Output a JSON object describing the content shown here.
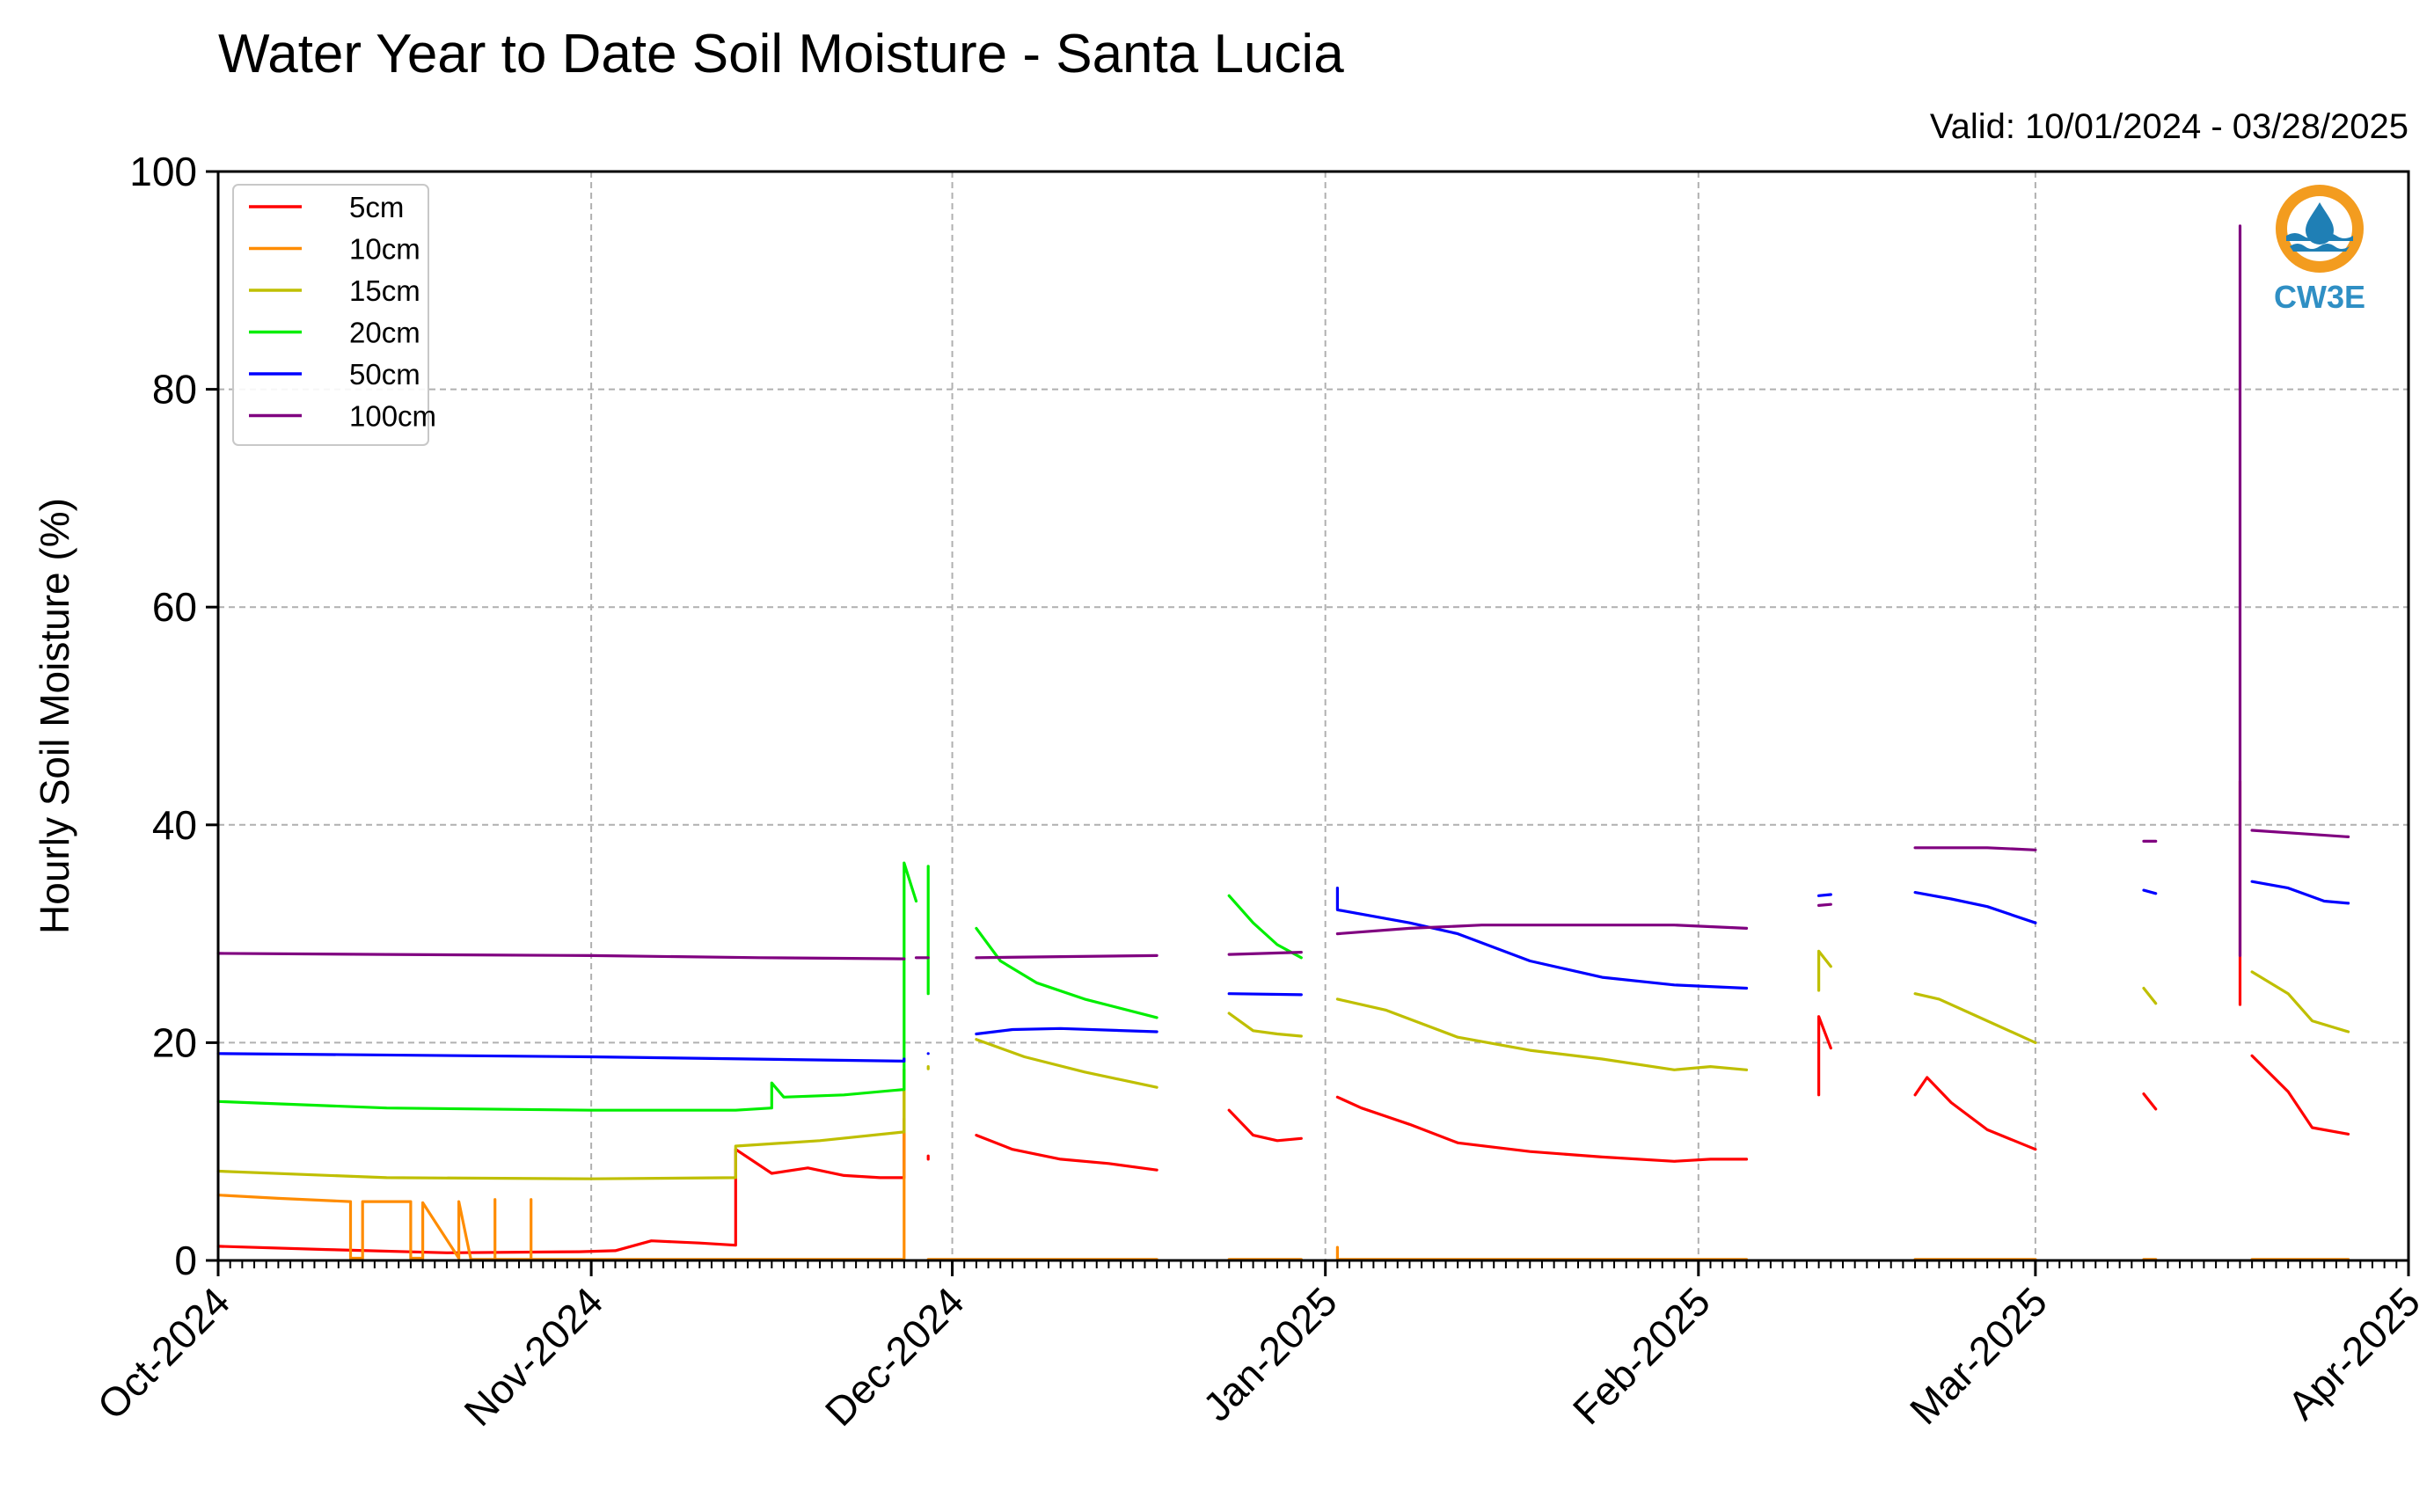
{
  "chart_data": {
    "type": "line",
    "title": "Water Year to Date Soil Moisture - Santa Lucia",
    "subtitle": "Valid: 10/01/2024 - 03/28/2025",
    "ylabel": "Hourly Soil Moisture (%)",
    "xlabel": "",
    "ylim": [
      0,
      100
    ],
    "xlim": [
      "2024-10-01",
      "2025-04-01"
    ],
    "yticks": [
      "0",
      "20",
      "40",
      "60",
      "80",
      "100"
    ],
    "xticks": [
      {
        "date": "2024-10-01",
        "label": "Oct-2024"
      },
      {
        "date": "2024-11-01",
        "label": "Nov-2024"
      },
      {
        "date": "2024-12-01",
        "label": "Dec-2024"
      },
      {
        "date": "2025-01-01",
        "label": "Jan-2025"
      },
      {
        "date": "2025-02-01",
        "label": "Feb-2025"
      },
      {
        "date": "2025-03-01",
        "label": "Mar-2025"
      },
      {
        "date": "2025-04-01",
        "label": "Apr-2025"
      }
    ],
    "grid": true,
    "legend_position": "top-left",
    "series": [
      {
        "name": "5cm",
        "color": "#ff0000",
        "segments": [
          [
            [
              "2024-10-01",
              1.3
            ],
            [
              "2024-10-10",
              1.0
            ],
            [
              "2024-10-20",
              0.7
            ],
            [
              "2024-10-31",
              0.8
            ],
            [
              "2024-11-03",
              0.9
            ],
            [
              "2024-11-06",
              1.8
            ],
            [
              "2024-11-10",
              1.6
            ],
            [
              "2024-11-13",
              1.4
            ],
            [
              "2024-11-13",
              10.2
            ],
            [
              "2024-11-16",
              8.0
            ],
            [
              "2024-11-19",
              8.5
            ],
            [
              "2024-11-22",
              7.8
            ],
            [
              "2024-11-25",
              7.6
            ],
            [
              "2024-11-27",
              7.6
            ],
            [
              "2024-11-27",
              13.0
            ]
          ],
          [
            [
              "2024-11-29",
              9.6
            ],
            [
              "2024-11-29",
              9.3
            ]
          ],
          [
            [
              "2024-12-03",
              11.5
            ],
            [
              "2024-12-06",
              10.2
            ],
            [
              "2024-12-10",
              9.3
            ],
            [
              "2024-12-14",
              8.9
            ],
            [
              "2024-12-18",
              8.3
            ]
          ],
          [
            [
              "2024-12-24",
              13.8
            ],
            [
              "2024-12-26",
              11.5
            ],
            [
              "2024-12-28",
              11.0
            ],
            [
              "2024-12-30",
              11.2
            ]
          ],
          [
            [
              "2025-01-02",
              15.0
            ],
            [
              "2025-01-04",
              14.0
            ],
            [
              "2025-01-08",
              12.5
            ],
            [
              "2025-01-12",
              10.8
            ],
            [
              "2025-01-18",
              10.0
            ],
            [
              "2025-01-24",
              9.5
            ],
            [
              "2025-01-30",
              9.1
            ],
            [
              "2025-02-02",
              9.3
            ],
            [
              "2025-02-05",
              9.3
            ]
          ],
          [
            [
              "2025-02-11",
              15.2
            ],
            [
              "2025-02-11",
              22.4
            ],
            [
              "2025-02-12",
              19.5
            ]
          ],
          [
            [
              "2025-02-19",
              15.2
            ],
            [
              "2025-02-20",
              16.8
            ],
            [
              "2025-02-22",
              14.5
            ],
            [
              "2025-02-25",
              12.0
            ],
            [
              "2025-03-01",
              10.2
            ]
          ],
          [
            [
              "2025-03-10",
              15.3
            ],
            [
              "2025-03-11",
              13.9
            ]
          ],
          [
            [
              "2025-03-18",
              44.0
            ],
            [
              "2025-03-18",
              23.5
            ]
          ],
          [
            [
              "2025-03-19",
              18.8
            ],
            [
              "2025-03-22",
              15.5
            ],
            [
              "2025-03-24",
              12.2
            ],
            [
              "2025-03-27",
              11.6
            ]
          ]
        ]
      },
      {
        "name": "10cm",
        "color": "#ff8c00",
        "segments": [
          [
            [
              "2024-10-01",
              6.0
            ],
            [
              "2024-10-06",
              5.7
            ],
            [
              "2024-10-12",
              5.4
            ],
            [
              "2024-10-12",
              0.2
            ],
            [
              "2024-10-13",
              0.2
            ],
            [
              "2024-10-13",
              5.4
            ],
            [
              "2024-10-17",
              5.4
            ],
            [
              "2024-10-17",
              0.2
            ],
            [
              "2024-10-18",
              0.2
            ],
            [
              "2024-10-18",
              5.3
            ],
            [
              "2024-10-21",
              0.2
            ],
            [
              "2024-10-21",
              5.4
            ],
            [
              "2024-10-22",
              0.1
            ],
            [
              "2024-10-24",
              0.1
            ],
            [
              "2024-10-24",
              5.6
            ],
            [
              "2024-10-24",
              0.1
            ],
            [
              "2024-10-27",
              0.1
            ],
            [
              "2024-10-27",
              5.6
            ],
            [
              "2024-10-27",
              0.1
            ],
            [
              "2024-11-27",
              0.1
            ],
            [
              "2024-11-27",
              17.5
            ]
          ],
          [
            [
              "2024-11-29",
              0.1
            ],
            [
              "2024-12-18",
              0.1
            ]
          ],
          [
            [
              "2024-12-24",
              0.1
            ],
            [
              "2024-12-30",
              0.1
            ]
          ],
          [
            [
              "2025-01-02",
              1.2
            ],
            [
              "2025-01-02",
              0.1
            ],
            [
              "2025-02-05",
              0.1
            ]
          ],
          [
            [
              "2025-02-19",
              0.1
            ],
            [
              "2025-03-01",
              0.1
            ]
          ],
          [
            [
              "2025-03-10",
              0.1
            ],
            [
              "2025-03-11",
              0.1
            ]
          ],
          [
            [
              "2025-03-19",
              0.1
            ],
            [
              "2025-03-27",
              0.1
            ]
          ]
        ]
      },
      {
        "name": "15cm",
        "color": "#bfbf00",
        "segments": [
          [
            [
              "2024-10-01",
              8.2
            ],
            [
              "2024-10-15",
              7.6
            ],
            [
              "2024-11-01",
              7.5
            ],
            [
              "2024-11-13",
              7.6
            ],
            [
              "2024-11-13",
              10.5
            ],
            [
              "2024-11-20",
              11.0
            ],
            [
              "2024-11-27",
              11.8
            ],
            [
              "2024-11-27",
              17.5
            ]
          ],
          [
            [
              "2024-11-29",
              17.8
            ],
            [
              "2024-11-29",
              17.6
            ]
          ],
          [
            [
              "2024-12-03",
              20.3
            ],
            [
              "2024-12-07",
              18.7
            ],
            [
              "2024-12-12",
              17.3
            ],
            [
              "2024-12-18",
              15.9
            ]
          ],
          [
            [
              "2024-12-24",
              22.7
            ],
            [
              "2024-12-26",
              21.1
            ],
            [
              "2024-12-28",
              20.8
            ],
            [
              "2024-12-30",
              20.6
            ]
          ],
          [
            [
              "2025-01-02",
              24.0
            ],
            [
              "2025-01-06",
              23.0
            ],
            [
              "2025-01-12",
              20.5
            ],
            [
              "2025-01-18",
              19.3
            ],
            [
              "2025-01-24",
              18.5
            ],
            [
              "2025-01-30",
              17.5
            ],
            [
              "2025-02-02",
              17.8
            ],
            [
              "2025-02-05",
              17.5
            ]
          ],
          [
            [
              "2025-02-11",
              24.8
            ],
            [
              "2025-02-11",
              28.4
            ],
            [
              "2025-02-12",
              27.0
            ]
          ],
          [
            [
              "2025-02-19",
              24.5
            ],
            [
              "2025-02-21",
              24.0
            ],
            [
              "2025-02-24",
              22.5
            ],
            [
              "2025-02-27",
              21.0
            ],
            [
              "2025-03-01",
              20.0
            ]
          ],
          [
            [
              "2025-03-10",
              25.0
            ],
            [
              "2025-03-11",
              23.6
            ]
          ],
          [
            [
              "2025-03-19",
              26.5
            ],
            [
              "2025-03-22",
              24.5
            ],
            [
              "2025-03-24",
              22.0
            ],
            [
              "2025-03-27",
              21.0
            ]
          ]
        ]
      },
      {
        "name": "20cm",
        "color": "#00ee00",
        "segments": [
          [
            [
              "2024-10-01",
              14.6
            ],
            [
              "2024-10-15",
              14.0
            ],
            [
              "2024-11-01",
              13.8
            ],
            [
              "2024-11-13",
              13.8
            ],
            [
              "2024-11-16",
              14.0
            ],
            [
              "2024-11-16",
              16.3
            ],
            [
              "2024-11-17",
              15.0
            ],
            [
              "2024-11-22",
              15.2
            ],
            [
              "2024-11-27",
              15.7
            ],
            [
              "2024-11-27",
              36.5
            ],
            [
              "2024-11-28",
              33.0
            ]
          ],
          [
            [
              "2024-11-29",
              24.5
            ],
            [
              "2024-11-29",
              36.2
            ]
          ],
          [
            [
              "2024-12-03",
              30.5
            ],
            [
              "2024-12-05",
              27.5
            ],
            [
              "2024-12-08",
              25.5
            ],
            [
              "2024-12-12",
              24.0
            ],
            [
              "2024-12-18",
              22.3
            ]
          ],
          [
            [
              "2024-12-24",
              33.5
            ],
            [
              "2024-12-26",
              31.0
            ],
            [
              "2024-12-28",
              29.0
            ],
            [
              "2024-12-30",
              27.8
            ]
          ]
        ]
      },
      {
        "name": "50cm",
        "color": "#0000ff",
        "segments": [
          [
            [
              "2024-10-01",
              19.0
            ],
            [
              "2024-11-01",
              18.7
            ],
            [
              "2024-11-27",
              18.3
            ],
            [
              "2024-11-27",
              18.5
            ]
          ],
          [
            [
              "2024-11-29",
              19.0
            ],
            [
              "2024-11-29",
              19.0
            ]
          ],
          [
            [
              "2024-12-03",
              20.8
            ],
            [
              "2024-12-06",
              21.2
            ],
            [
              "2024-12-10",
              21.3
            ],
            [
              "2024-12-18",
              21.0
            ]
          ],
          [
            [
              "2024-12-24",
              24.5
            ],
            [
              "2024-12-30",
              24.4
            ]
          ],
          [
            [
              "2025-01-02",
              34.2
            ],
            [
              "2025-01-02",
              32.2
            ],
            [
              "2025-01-08",
              31.0
            ],
            [
              "2025-01-12",
              30.0
            ],
            [
              "2025-01-18",
              27.5
            ],
            [
              "2025-01-24",
              26.0
            ],
            [
              "2025-01-30",
              25.3
            ],
            [
              "2025-02-05",
              25.0
            ]
          ],
          [
            [
              "2025-02-11",
              33.5
            ],
            [
              "2025-02-12",
              33.6
            ]
          ],
          [
            [
              "2025-02-19",
              33.8
            ],
            [
              "2025-02-22",
              33.2
            ],
            [
              "2025-02-25",
              32.5
            ],
            [
              "2025-03-01",
              31.0
            ]
          ],
          [
            [
              "2025-03-10",
              34.0
            ],
            [
              "2025-03-11",
              33.7
            ]
          ],
          [
            [
              "2025-03-19",
              34.8
            ],
            [
              "2025-03-22",
              34.2
            ],
            [
              "2025-03-25",
              33.0
            ],
            [
              "2025-03-27",
              32.8
            ]
          ]
        ]
      },
      {
        "name": "100cm",
        "color": "#800080",
        "segments": [
          [
            [
              "2024-10-01",
              28.2
            ],
            [
              "2024-10-15",
              28.1
            ],
            [
              "2024-11-01",
              28.0
            ],
            [
              "2024-11-15",
              27.8
            ],
            [
              "2024-11-27",
              27.7
            ]
          ],
          [
            [
              "2024-11-28",
              27.8
            ],
            [
              "2024-11-29",
              27.8
            ]
          ],
          [
            [
              "2024-12-03",
              27.8
            ],
            [
              "2024-12-10",
              27.9
            ],
            [
              "2024-12-18",
              28.0
            ]
          ],
          [
            [
              "2024-12-24",
              28.1
            ],
            [
              "2024-12-30",
              28.3
            ]
          ],
          [
            [
              "2025-01-02",
              30.0
            ],
            [
              "2025-01-08",
              30.5
            ],
            [
              "2025-01-14",
              30.8
            ],
            [
              "2025-01-30",
              30.8
            ],
            [
              "2025-02-05",
              30.5
            ]
          ],
          [
            [
              "2025-02-11",
              32.6
            ],
            [
              "2025-02-12",
              32.7
            ]
          ],
          [
            [
              "2025-02-19",
              37.9
            ],
            [
              "2025-02-25",
              37.9
            ],
            [
              "2025-03-01",
              37.7
            ]
          ],
          [
            [
              "2025-03-10",
              38.5
            ],
            [
              "2025-03-11",
              38.5
            ]
          ],
          [
            [
              "2025-03-18",
              95.0
            ],
            [
              "2025-03-18",
              28.0
            ]
          ],
          [
            [
              "2025-03-19",
              39.5
            ],
            [
              "2025-03-23",
              39.2
            ],
            [
              "2025-03-27",
              38.9
            ]
          ]
        ]
      }
    ]
  },
  "logo": {
    "text": "CW3E",
    "ring_color": "#f39c1f",
    "wave_color": "#1f7fb5",
    "text_color": "#2f8fc4"
  }
}
